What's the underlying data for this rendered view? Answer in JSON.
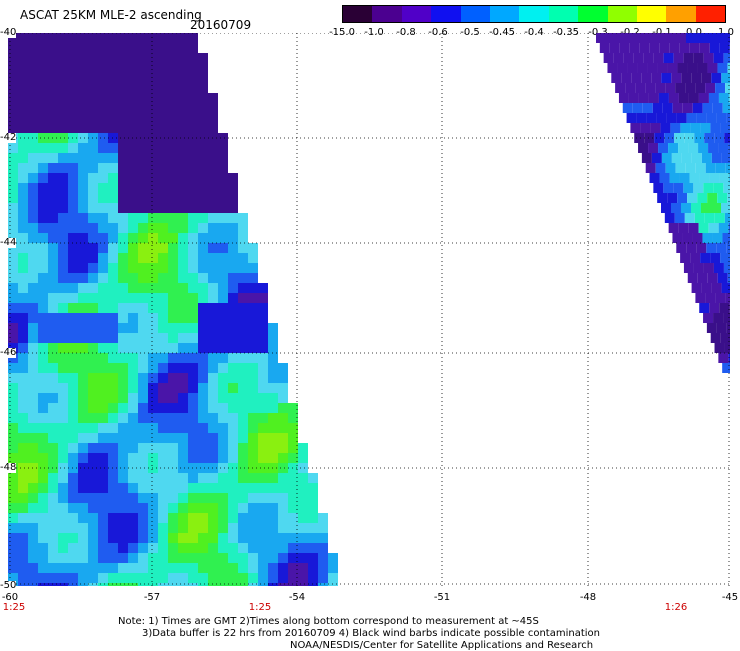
{
  "title": "ASCAT 25KM MLE-2 ascending",
  "date": "20160709",
  "colorbar": {
    "labels": [
      "-15.0",
      "-1.0",
      "-0.8",
      "-0.6",
      "-0.5",
      "-0.45",
      "-0.4",
      "-0.35",
      "-0.3",
      "-0.2",
      "-0.1",
      "0.0",
      "1.0"
    ],
    "colors": [
      "#2a0035",
      "#4b0090",
      "#5000c8",
      "#1010f0",
      "#0060ff",
      "#00a8ff",
      "#00f0f0",
      "#00ffb0",
      "#00ff30",
      "#90ff00",
      "#ffff00",
      "#ffa000",
      "#ff2000"
    ]
  },
  "axes": {
    "lat_labels": [
      "-40",
      "-42",
      "-44",
      "-46",
      "-48",
      "-50"
    ],
    "lon_labels": [
      "-60",
      "-57",
      "-54",
      "-51",
      "-48",
      "-45"
    ]
  },
  "times": [
    "1:25",
    "1:25",
    "1:26"
  ],
  "notes": [
    "Note: 1) Times are GMT 2)Times along bottom correspond to measurement at ~45S",
    "3)Data buffer is 22 hrs from 20160709 4) Black wind barbs indicate possible contamination",
    "NOAA/NESDIS/Center for Satellite Applications and Research"
  ]
}
